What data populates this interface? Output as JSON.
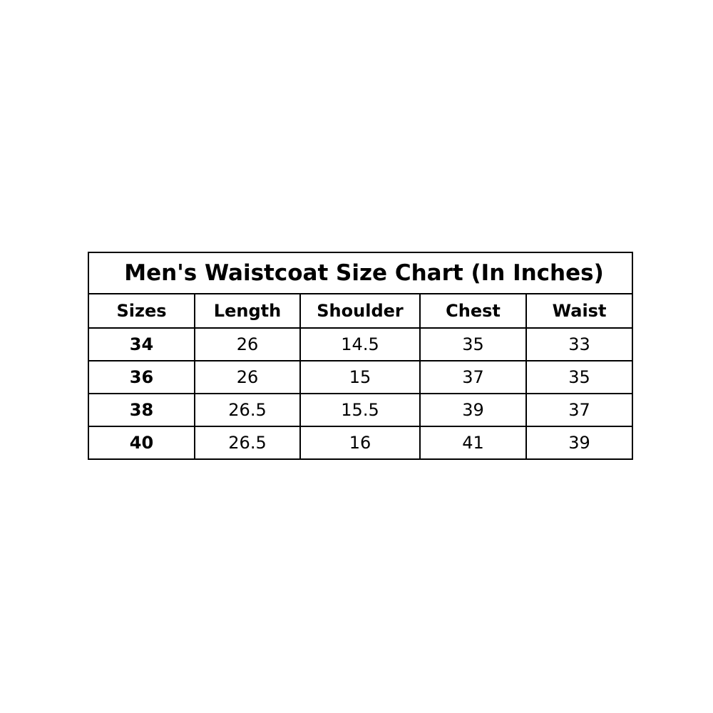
{
  "title": "Men's Waistcoat Size Chart (In Inches)",
  "headers": [
    "Sizes",
    "Length",
    "Shoulder",
    "Chest",
    "Waist"
  ],
  "rows": [
    [
      "34",
      "26",
      "14.5",
      "35",
      "33"
    ],
    [
      "36",
      "26",
      "15",
      "37",
      "35"
    ],
    [
      "38",
      "26.5",
      "15.5",
      "39",
      "37"
    ],
    [
      "40",
      "26.5",
      "16",
      "41",
      "39"
    ]
  ]
}
